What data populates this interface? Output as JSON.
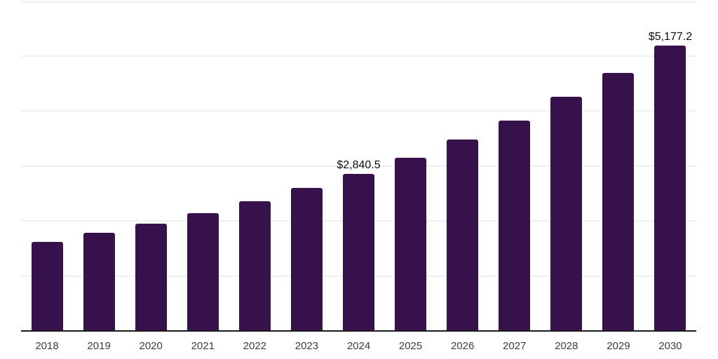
{
  "chart_data": {
    "type": "bar",
    "title": "",
    "xlabel": "",
    "ylabel": "",
    "categories": [
      "2018",
      "2019",
      "2020",
      "2021",
      "2022",
      "2023",
      "2024",
      "2025",
      "2026",
      "2027",
      "2028",
      "2029",
      "2030"
    ],
    "values": [
      1610,
      1765,
      1940,
      2130,
      2345,
      2580,
      2840.5,
      3135,
      3465,
      3810,
      4240,
      4675,
      5177.2
    ],
    "data_labels": [
      {
        "index": 6,
        "text": "$2,840.5"
      },
      {
        "index": 12,
        "text": "$5,177.2"
      }
    ],
    "ylim": [
      0,
      6000
    ],
    "gridline_step": 1000,
    "grid": "horizontal",
    "legend": "none",
    "colors": {
      "bar": "#36114B",
      "axis_line": "#1a1a1a",
      "gridline": "#f0f0f4",
      "tick_label": "#3d3d3d",
      "data_label": "#0f0f0f",
      "background": "#ffffff"
    }
  }
}
